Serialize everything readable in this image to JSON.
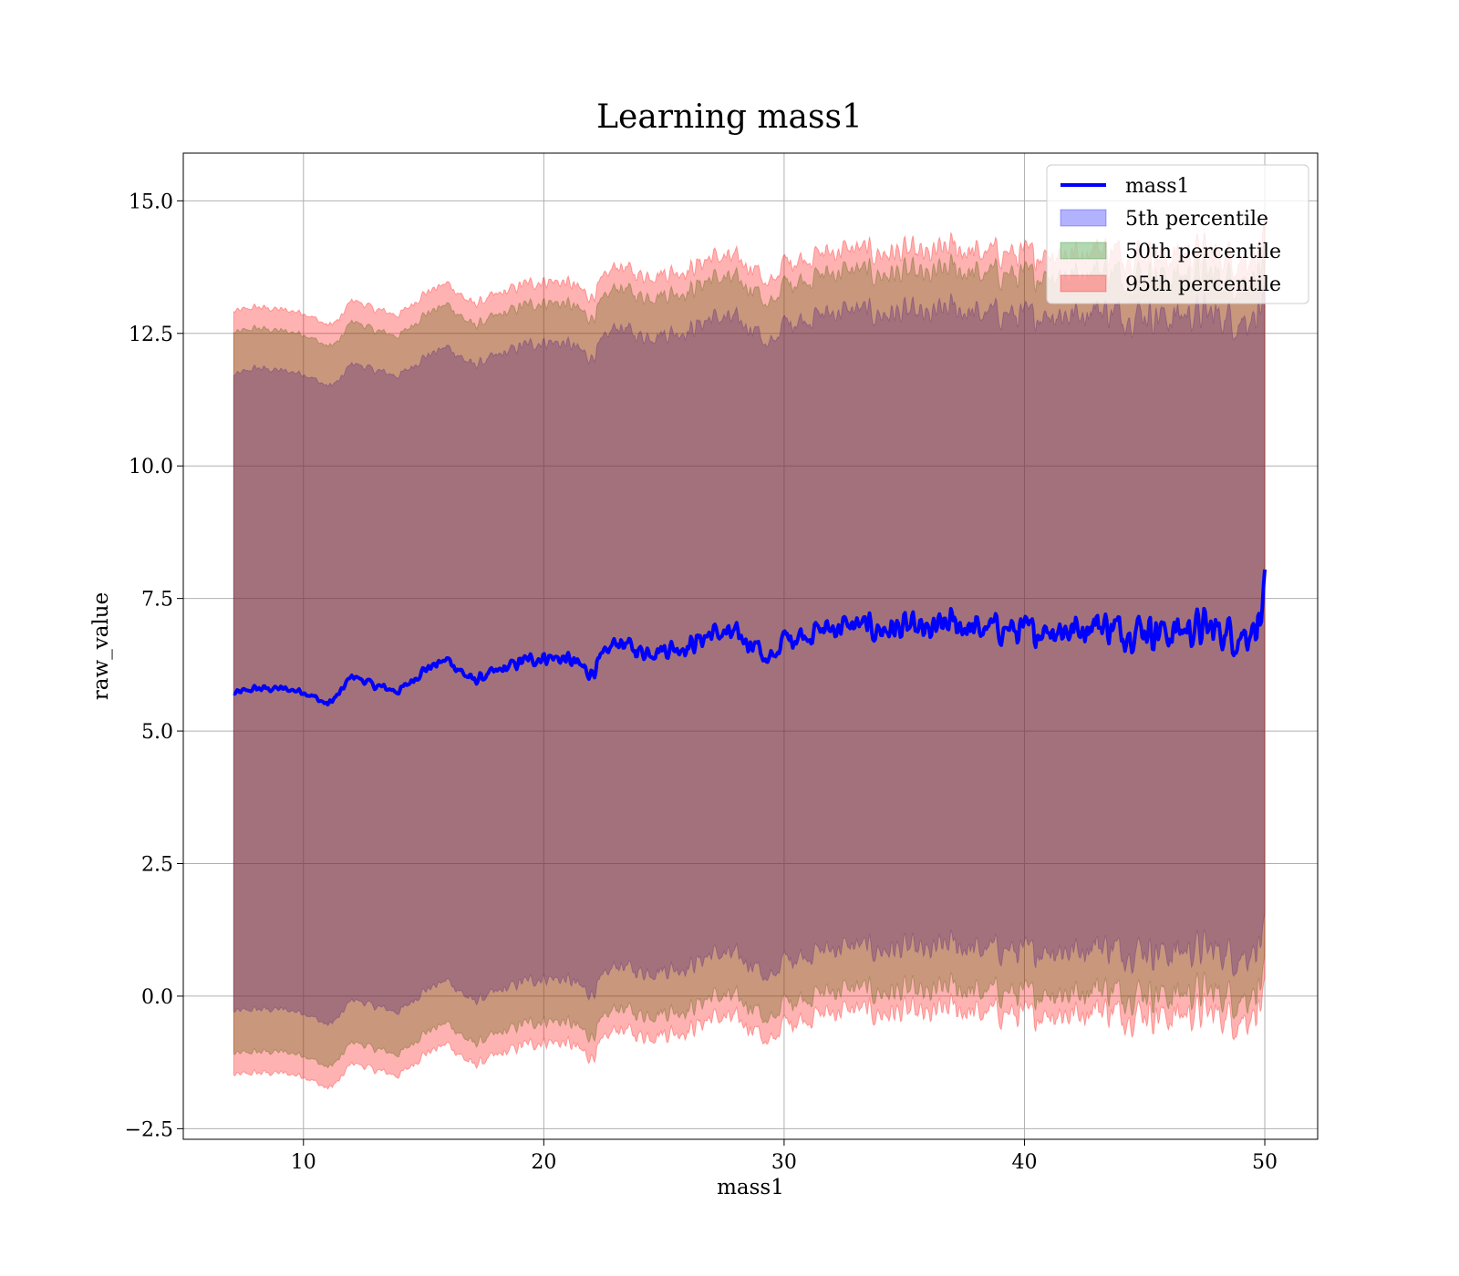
{
  "chart_data": {
    "type": "area",
    "title": "Learning mass1",
    "xlabel": "mass1",
    "ylabel": "raw_value",
    "xlim": [
      5,
      52.2
    ],
    "ylim": [
      -2.7,
      15.9
    ],
    "x_ticks": [
      10,
      20,
      30,
      40,
      50
    ],
    "x_tick_labels": [
      "10",
      "20",
      "30",
      "40",
      "50"
    ],
    "y_ticks": [
      -2.5,
      0,
      2.5,
      5,
      7.5,
      10,
      12.5,
      15
    ],
    "y_tick_labels": [
      "−2.5",
      "0.0",
      "2.5",
      "5.0",
      "7.5",
      "10.0",
      "12.5",
      "15.0"
    ],
    "grid": true,
    "legend_position": "upper right",
    "x": [
      7.1,
      8,
      9,
      10,
      11,
      11.5,
      12,
      13,
      14,
      15,
      16,
      17,
      18,
      19,
      20,
      21,
      22,
      23,
      24,
      25,
      26,
      27,
      28,
      29,
      29.3,
      30,
      31,
      32,
      33,
      34,
      35,
      36,
      37,
      38,
      39,
      40,
      41,
      42,
      43,
      44,
      45,
      46,
      47,
      48,
      49,
      49.9,
      50
    ],
    "series": [
      {
        "name": "mass1",
        "kind": "line",
        "color": "#0000ff",
        "values": [
          5.7,
          5.8,
          5.8,
          5.75,
          5.5,
          5.7,
          6.05,
          5.85,
          5.75,
          6.15,
          6.35,
          5.95,
          6.1,
          6.3,
          6.4,
          6.35,
          6.1,
          6.7,
          6.5,
          6.55,
          6.6,
          6.85,
          6.8,
          6.6,
          6.2,
          6.75,
          6.85,
          6.95,
          7.0,
          6.9,
          6.95,
          6.85,
          7.05,
          6.9,
          6.95,
          6.85,
          6.95,
          6.9,
          7.05,
          6.9,
          6.95,
          6.85,
          6.95,
          6.9,
          6.8,
          7.1,
          7.6
        ]
      },
      {
        "name": "5th percentile",
        "kind": "band",
        "color": "#0000ff",
        "upper": [
          11.7,
          11.85,
          11.8,
          11.75,
          11.5,
          11.6,
          11.95,
          11.8,
          11.7,
          12.05,
          12.25,
          11.9,
          12.05,
          12.25,
          12.35,
          12.3,
          12.05,
          12.65,
          12.45,
          12.5,
          12.55,
          12.8,
          12.75,
          12.55,
          12.15,
          12.7,
          12.8,
          12.9,
          12.95,
          12.85,
          12.9,
          12.8,
          13.0,
          12.85,
          12.9,
          12.8,
          12.9,
          12.85,
          13.0,
          12.85,
          12.9,
          12.8,
          12.9,
          12.85,
          12.75,
          12.95,
          13.0
        ],
        "lower": [
          -0.3,
          -0.25,
          -0.25,
          -0.3,
          -0.55,
          -0.4,
          -0.05,
          -0.2,
          -0.3,
          0.1,
          0.3,
          -0.1,
          0.05,
          0.25,
          0.35,
          0.3,
          0.05,
          0.6,
          0.45,
          0.5,
          0.55,
          0.8,
          0.75,
          0.55,
          0.2,
          0.7,
          0.8,
          0.9,
          0.95,
          0.85,
          0.9,
          0.8,
          1.0,
          0.85,
          0.9,
          0.8,
          0.9,
          0.85,
          1.0,
          0.85,
          0.9,
          0.8,
          0.9,
          0.85,
          0.75,
          1.0,
          1.1
        ]
      },
      {
        "name": "50th percentile",
        "kind": "band",
        "color": "#008000",
        "upper": [
          12.5,
          12.6,
          12.55,
          12.5,
          12.25,
          12.35,
          12.75,
          12.55,
          12.45,
          12.85,
          13.05,
          12.65,
          12.8,
          13.0,
          13.1,
          13.05,
          12.8,
          13.4,
          13.2,
          13.25,
          13.3,
          13.55,
          13.5,
          13.3,
          12.9,
          13.45,
          13.55,
          13.65,
          13.7,
          13.6,
          13.65,
          13.55,
          13.75,
          13.6,
          13.65,
          13.55,
          13.65,
          13.6,
          13.75,
          13.6,
          13.65,
          13.55,
          13.65,
          13.6,
          13.5,
          13.7,
          13.8
        ],
        "lower": [
          -1.1,
          -1.05,
          -1.05,
          -1.1,
          -1.35,
          -1.2,
          -0.85,
          -1.0,
          -1.1,
          -0.7,
          -0.5,
          -0.9,
          -0.75,
          -0.55,
          -0.45,
          -0.5,
          -0.75,
          -0.2,
          -0.35,
          -0.3,
          -0.25,
          0.0,
          -0.05,
          -0.25,
          -0.6,
          -0.1,
          0.0,
          0.1,
          0.15,
          0.05,
          0.1,
          0.0,
          0.2,
          0.05,
          0.1,
          0.0,
          0.1,
          0.05,
          0.2,
          0.05,
          0.1,
          0.0,
          0.1,
          0.05,
          -0.05,
          0.2,
          0.3
        ]
      },
      {
        "name": "95th percentile",
        "kind": "band",
        "color": "#ff0000",
        "upper": [
          12.9,
          13.0,
          12.95,
          12.9,
          12.65,
          12.75,
          13.15,
          12.95,
          12.85,
          13.25,
          13.45,
          13.05,
          13.2,
          13.4,
          13.5,
          13.45,
          13.2,
          13.8,
          13.6,
          13.65,
          13.7,
          13.95,
          13.9,
          13.7,
          13.3,
          13.85,
          13.95,
          14.05,
          14.1,
          14.0,
          14.05,
          13.95,
          14.15,
          14.0,
          14.05,
          13.95,
          14.05,
          14.0,
          14.15,
          14.0,
          14.05,
          13.95,
          14.05,
          14.0,
          13.9,
          14.1,
          14.2
        ],
        "lower": [
          -1.5,
          -1.45,
          -1.45,
          -1.5,
          -1.75,
          -1.6,
          -1.25,
          -1.4,
          -1.5,
          -1.1,
          -0.9,
          -1.3,
          -1.15,
          -0.95,
          -0.85,
          -0.9,
          -1.15,
          -0.6,
          -0.75,
          -0.7,
          -0.65,
          -0.4,
          -0.45,
          -0.65,
          -1.0,
          -0.5,
          -0.4,
          -0.3,
          -0.25,
          -0.35,
          -0.3,
          -0.4,
          -0.2,
          -0.35,
          -0.3,
          -0.4,
          -0.3,
          -0.35,
          -0.2,
          -0.35,
          -0.3,
          -0.4,
          -0.3,
          -0.35,
          -0.45,
          -0.2,
          -0.1
        ]
      }
    ]
  }
}
